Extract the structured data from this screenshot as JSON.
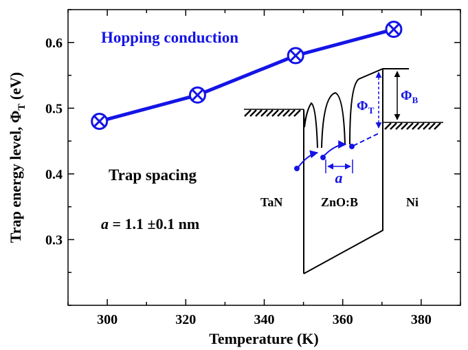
{
  "chart_data": {
    "type": "line",
    "xlabel": "Temperature (K)",
    "ylabel": {
      "prefix": "Trap energy level, Φ",
      "sub": "T",
      "suffix": " (eV)"
    },
    "xlim": [
      290,
      390
    ],
    "ylim": [
      0.2,
      0.65
    ],
    "xticks": [
      300,
      320,
      340,
      360,
      380
    ],
    "yticks": [
      0.3,
      0.4,
      0.5,
      0.6
    ],
    "xtick_labels": [
      "300",
      "320",
      "340",
      "360",
      "380"
    ],
    "ytick_labels": [
      "0.3",
      "0.4",
      "0.5",
      "0.6"
    ],
    "series": [
      {
        "x": [
          298,
          323,
          348,
          373
        ],
        "y": [
          0.48,
          0.52,
          0.58,
          0.62
        ],
        "color": "#1414e6",
        "marker": "circle-x"
      }
    ],
    "annotations": {
      "hopping": "Hopping conduction",
      "trap_spacing": "Trap spacing",
      "spacing_var": "a",
      "spacing_value": " = 1.1 ±0.1 nm"
    },
    "inset": {
      "left_label": "TaN",
      "mid_label": "ZnO:B",
      "right_label": "Ni",
      "phi_t": {
        "sym": "Φ",
        "sub": "T"
      },
      "phi_b": {
        "sym": "Φ",
        "sub": "B"
      },
      "spacing": "a"
    }
  }
}
